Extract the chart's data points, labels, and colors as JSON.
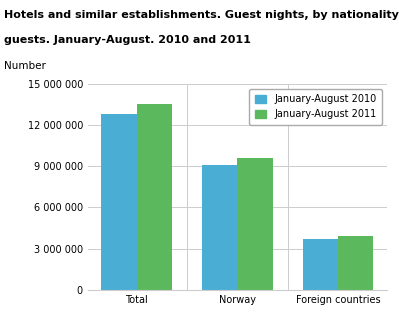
{
  "title_line1": "Hotels and similar establishments. Guest nights, by nationality of the",
  "title_line2": "guests. January-August. 2010 and 2011",
  "ylabel_text": "Number",
  "categories": [
    "Total",
    "Norway",
    "Foreign countries"
  ],
  "values_2010": [
    12800000,
    9100000,
    3700000
  ],
  "values_2011": [
    13500000,
    9600000,
    3900000
  ],
  "color_2010": "#4aaed4",
  "color_2011": "#5cb85c",
  "legend_2010": "January-August 2010",
  "legend_2011": "January-August 2011",
  "ylim": [
    0,
    15000000
  ],
  "yticks": [
    0,
    3000000,
    6000000,
    9000000,
    12000000,
    15000000
  ],
  "ytick_labels": [
    "0",
    "3 000 000",
    "6 000 000",
    "9 000 000",
    "12 000 000",
    "15 000 000"
  ],
  "background_color": "#ffffff",
  "grid_color": "#cccccc",
  "title_fontsize": 8.0,
  "number_fontsize": 7.5,
  "tick_fontsize": 7.0,
  "legend_fontsize": 7.0
}
